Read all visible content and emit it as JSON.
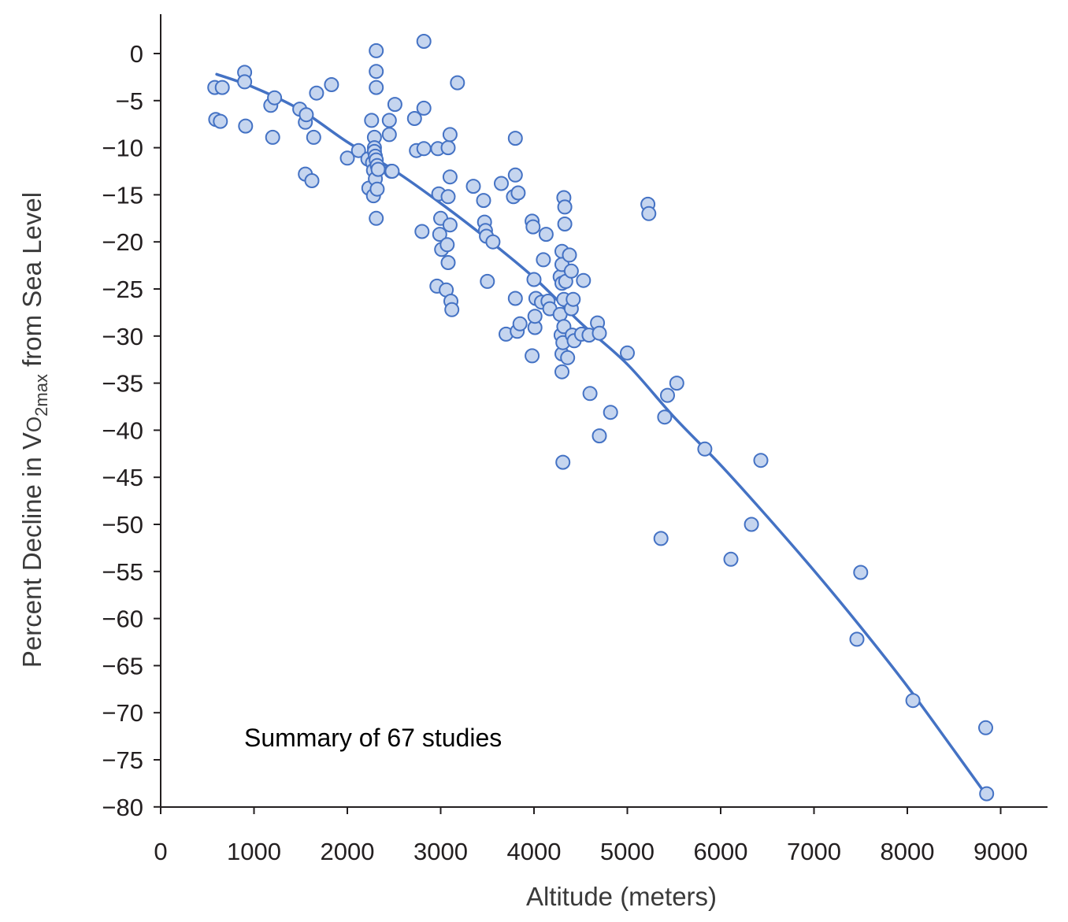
{
  "chart_data": {
    "type": "scatter",
    "xlabel": "Altitude (meters)",
    "ylabel": {
      "prefix": "Percent Decline in ",
      "symbol": "V",
      "subscript_o": "O",
      "subscript": "2max",
      "suffix": " from Sea Level"
    },
    "annotation": "Summary of 67 studies",
    "xlim": [
      0,
      9500
    ],
    "ylim": [
      -80,
      4
    ],
    "x_ticks": [
      0,
      1000,
      2000,
      3000,
      4000,
      5000,
      6000,
      7000,
      8000,
      9000
    ],
    "x_tick_labels": [
      "0",
      "1000",
      "2000",
      "3000",
      "4000",
      "5000",
      "6000",
      "7000",
      "8000",
      "9000"
    ],
    "y_ticks": [
      0,
      -5,
      -10,
      -15,
      -20,
      -25,
      -30,
      -35,
      -40,
      -45,
      -50,
      -55,
      -60,
      -65,
      -70,
      -75,
      -80
    ],
    "y_tick_labels": [
      "0",
      "−5",
      "−10",
      "−15",
      "−20",
      "−25",
      "−30",
      "−35",
      "−40",
      "−45",
      "−50",
      "−55",
      "−60",
      "−65",
      "−70",
      "−75",
      "−80"
    ],
    "grid": false,
    "colors": {
      "line": "#4472c4",
      "marker_fill": "#c5d5ef",
      "marker_stroke": "#4472c4",
      "axis": "#231f20"
    },
    "trend_line": {
      "x": [
        600,
        1000,
        1500,
        2000,
        2500,
        3000,
        3500,
        4000,
        4500,
        5000,
        5500,
        6000,
        6500,
        7000,
        7500,
        8000,
        8500,
        8850
      ],
      "y": [
        -2.2,
        -3.6,
        -6.0,
        -9.4,
        -12.4,
        -15.9,
        -19.7,
        -23.8,
        -28.6,
        -33.0,
        -38.6,
        -43.7,
        -49.2,
        -54.9,
        -60.9,
        -67.2,
        -74.0,
        -78.8
      ]
    },
    "series": [
      {
        "x": [
          580,
          590,
          660,
          640,
          900,
          900,
          910,
          1180,
          1200,
          1220,
          1490,
          1550,
          1560,
          1550,
          1620,
          1640,
          1670,
          1830,
          2000,
          2120,
          2220,
          2230,
          2260,
          2270,
          2280,
          2280,
          2290,
          2290,
          2290,
          2300,
          2300,
          2310,
          2310,
          2310,
          2310,
          2310,
          2320,
          2320,
          2330,
          2450,
          2450,
          2470,
          2480,
          2510,
          2720,
          2740,
          2800,
          2820,
          2820,
          2820,
          2960,
          2970,
          2980,
          2990,
          3000,
          3010,
          3060,
          3070,
          3080,
          3080,
          3080,
          3100,
          3100,
          3100,
          3110,
          3120,
          3180,
          3350,
          3460,
          3470,
          3480,
          3490,
          3500,
          3560,
          3650,
          3700,
          3780,
          3800,
          3800,
          3800,
          3820,
          3830,
          3850,
          3980,
          3980,
          3990,
          4000,
          4010,
          4010,
          4020,
          4080,
          4100,
          4130,
          4150,
          4170,
          4280,
          4280,
          4290,
          4300,
          4300,
          4300,
          4300,
          4300,
          4310,
          4310,
          4320,
          4320,
          4320,
          4330,
          4330,
          4340,
          4360,
          4380,
          4400,
          4400,
          4410,
          4420,
          4430,
          4510,
          4530,
          4590,
          4600,
          4680,
          4700,
          4700,
          4820,
          5000,
          5220,
          5230,
          5360,
          5400,
          5430,
          5530,
          5830,
          6110,
          6330,
          6430,
          7460,
          7500,
          8060,
          8840,
          8850
        ],
        "y": [
          -3.6,
          -7.0,
          -3.6,
          -7.2,
          -2.0,
          -3.0,
          -7.7,
          -5.5,
          -8.9,
          -4.7,
          -5.9,
          -7.3,
          -6.5,
          -12.8,
          -13.5,
          -8.9,
          -4.2,
          -3.3,
          -11.1,
          -10.3,
          -11.2,
          -14.3,
          -7.1,
          -11.6,
          -12.4,
          -15.1,
          -8.9,
          -10.0,
          -10.4,
          -10.9,
          -13.3,
          0.3,
          -1.9,
          -3.6,
          -11.3,
          -17.5,
          -11.9,
          -14.4,
          -12.3,
          -8.6,
          -7.1,
          -12.5,
          -12.5,
          -5.4,
          -6.9,
          -10.3,
          -18.9,
          -5.8,
          -10.1,
          1.3,
          -24.7,
          -10.1,
          -14.9,
          -19.2,
          -17.5,
          -20.8,
          -25.1,
          -20.3,
          -22.2,
          -15.2,
          -10.0,
          -8.6,
          -13.1,
          -18.2,
          -26.3,
          -27.2,
          -3.1,
          -14.1,
          -15.6,
          -17.9,
          -18.8,
          -19.4,
          -24.2,
          -20.0,
          -13.8,
          -29.8,
          -15.2,
          -9.0,
          -12.9,
          -26.0,
          -29.5,
          -14.8,
          -28.7,
          -32.1,
          -17.8,
          -18.4,
          -24.0,
          -29.1,
          -27.9,
          -26.0,
          -26.4,
          -21.9,
          -19.2,
          -26.3,
          -27.1,
          -23.7,
          -27.7,
          -29.9,
          -21.0,
          -22.4,
          -24.4,
          -31.9,
          -33.8,
          -43.4,
          -30.7,
          -29.0,
          -26.1,
          -15.3,
          -16.3,
          -18.1,
          -24.2,
          -32.3,
          -21.4,
          -23.1,
          -27.1,
          -29.9,
          -26.1,
          -30.5,
          -29.8,
          -24.1,
          -29.9,
          -36.1,
          -28.6,
          -29.7,
          -40.6,
          -38.1,
          -31.8,
          -16.0,
          -17.0,
          -51.5,
          -38.6,
          -36.3,
          -35.0,
          -42.0,
          -53.7,
          -50.0,
          -43.2,
          -62.2,
          -55.1,
          -68.7,
          -71.6,
          -78.6
        ]
      }
    ]
  }
}
